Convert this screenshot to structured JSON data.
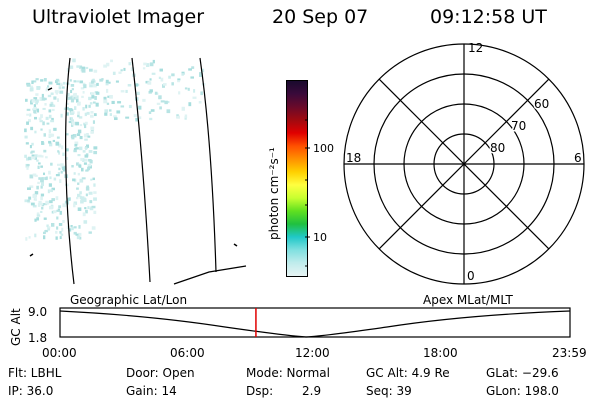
{
  "header": {
    "instrument": "Ultraviolet Imager",
    "date": "20 Sep 07",
    "time": "09:12:58 UT"
  },
  "colorbar": {
    "label": "photon cm⁻²s⁻¹",
    "ticks": [
      "100",
      "10"
    ],
    "colors": [
      "#1a0a2e",
      "#3a0a3a",
      "#6a0a2a",
      "#a00a10",
      "#e00000",
      "#ff5000",
      "#ff9000",
      "#ffd000",
      "#ffff40",
      "#c8ff30",
      "#60e020",
      "#20c040",
      "#20c8c8",
      "#80e0e0",
      "#c0ecec",
      "#e8f4f4"
    ]
  },
  "polar": {
    "mlt_labels": {
      "top": "12",
      "right": "6",
      "bottom": "0",
      "left": "18"
    },
    "lat_labels": [
      "60",
      "70",
      "80"
    ]
  },
  "lower_panel": {
    "left_label": "Geographic Lat/Lon",
    "right_label": "Apex MLat/MLT",
    "y_axis_label": "GC Alt",
    "y_ticks": [
      "9.0",
      "1.8"
    ],
    "x_ticks": [
      "00:00",
      "06:00",
      "12:00",
      "18:00",
      "23:59"
    ],
    "current_time_marker_hours": 9.22
  },
  "status": {
    "flt": "Flt: LBHL",
    "ip": "IP: 36.0",
    "door": "Door: Open",
    "gain": "Gain: 14",
    "mode": "Mode: Normal",
    "dsp_label": "Dsp:",
    "dsp_value": "2.9",
    "gc_alt": "GC Alt: 4.9 Re",
    "seq": "Seq: 39",
    "glat": "GLat: −29.6",
    "glon": "GLon: 198.0"
  }
}
